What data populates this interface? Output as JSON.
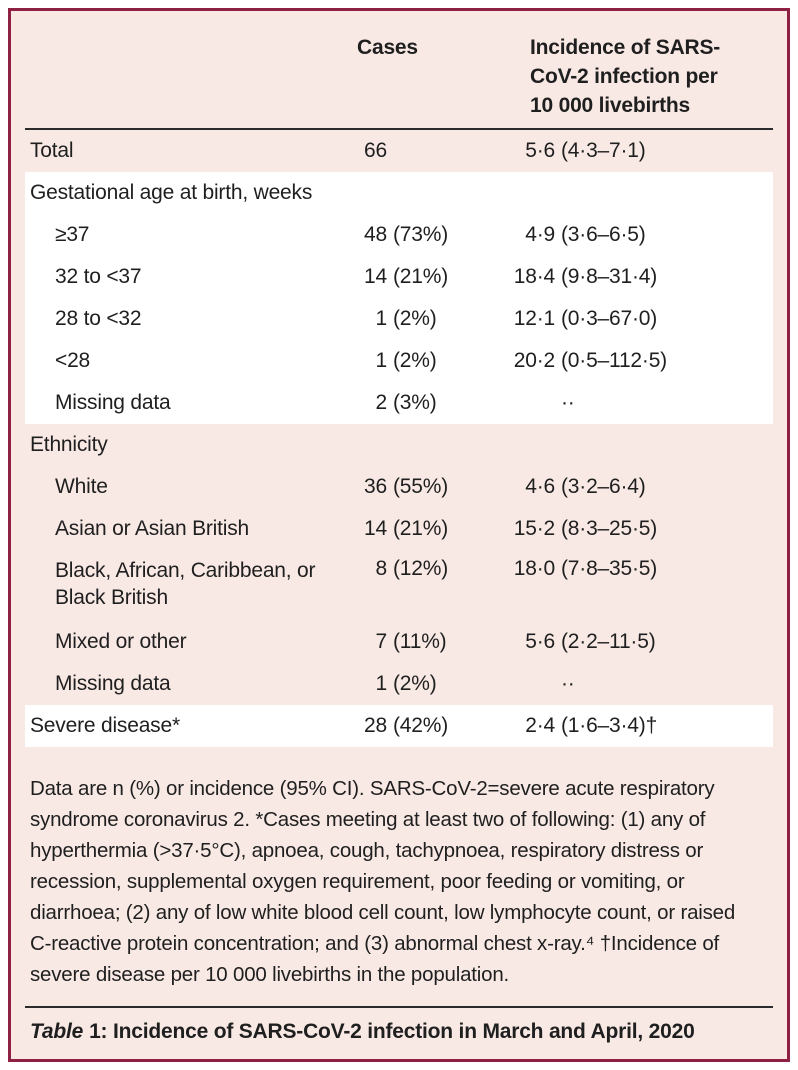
{
  "colors": {
    "background": "#f8e9e5",
    "band_white": "#ffffff",
    "border": "#8e2044",
    "text": "#1f1f1f",
    "rule": "#2b2b2b"
  },
  "table": {
    "header": {
      "col_cases": "Cases",
      "col_incidence_lines": [
        "Incidence of SARS-",
        "CoV-2 infection per",
        "10 000 livebirths"
      ]
    },
    "rows": [
      {
        "label": "Total",
        "n": "66",
        "pct": "",
        "inc": "5·6",
        "ci": "(4·3–7·1)"
      },
      {
        "label": "Gestational age at birth, weeks",
        "n": "",
        "pct": "",
        "inc": "",
        "ci": ""
      },
      {
        "label": "≥37",
        "n": "48",
        "pct": "(73%)",
        "inc": "4·9",
        "ci": "(3·6–6·5)"
      },
      {
        "label": "32 to <37",
        "n": "14",
        "pct": "(21%)",
        "inc": "18·4",
        "ci": "(9·8–31·4)"
      },
      {
        "label": "28 to <32",
        "n": "1",
        "pct": "(2%)",
        "inc": "12·1",
        "ci": "(0·3–67·0)"
      },
      {
        "label": "<28",
        "n": "1",
        "pct": "(2%)",
        "inc": "20·2",
        "ci": "(0·5–112·5)"
      },
      {
        "label": "Missing data",
        "n": "2",
        "pct": "(3%)",
        "inc": "",
        "ci": "··"
      },
      {
        "label": "Ethnicity",
        "n": "",
        "pct": "",
        "inc": "",
        "ci": ""
      },
      {
        "label": "White",
        "n": "36",
        "pct": "(55%)",
        "inc": "4·6",
        "ci": "(3·2–6·4)"
      },
      {
        "label": "Asian or Asian British",
        "n": "14",
        "pct": "(21%)",
        "inc": "15·2",
        "ci": "(8·3–25·5)"
      },
      {
        "label": "Black, African, Caribbean, or Black British",
        "n": "8",
        "pct": "(12%)",
        "inc": "18·0",
        "ci": "(7·8–35·5)"
      },
      {
        "label": "Mixed or other",
        "n": "7",
        "pct": "(11%)",
        "inc": "5·6",
        "ci": "(2·2–11·5)"
      },
      {
        "label": "Missing data",
        "n": "1",
        "pct": "(2%)",
        "inc": "",
        "ci": "··"
      },
      {
        "label": "Severe disease*",
        "n": "28",
        "pct": "(42%)",
        "inc": "2·4",
        "ci": "(1·6–3·4)†"
      }
    ],
    "footnote_lines": [
      "Data are n (%) or incidence (95% CI). SARS-CoV-2=severe acute respiratory",
      "syndrome coronavirus 2. *Cases meeting at least two of following: (1) any of",
      "hyperthermia (>37·5°C), apnoea, cough, tachypnoea, respiratory distress or",
      "recession, supplemental oxygen requirement, poor feeding or vomiting, or",
      "diarrhoea; (2) any of low white blood cell count, low lymphocyte count, or raised",
      "C-reactive protein concentration; and (3) abnormal chest x-ray.⁴ †Incidence of",
      "severe disease per 10 000 livebirths in the population."
    ],
    "caption": {
      "label_word": "Table",
      "rest": "1: Incidence of SARS-CoV-2 infection in March and April, 2020"
    }
  }
}
